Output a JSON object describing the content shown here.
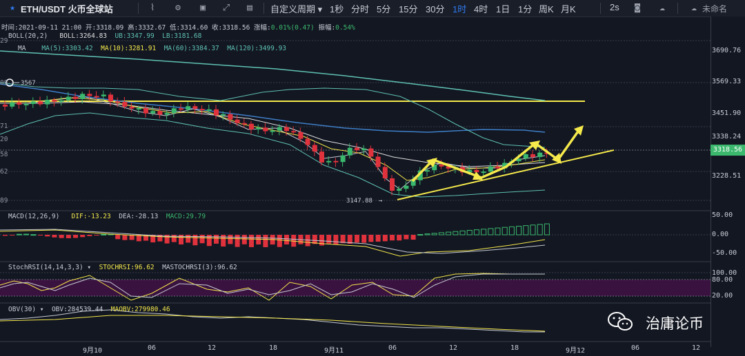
{
  "toolbar": {
    "symbol": "ETH/USDT 火币全球站",
    "period_label": "自定义周期",
    "intervals": [
      "1秒",
      "分时",
      "5分",
      "15分",
      "30分",
      "1时",
      "4时",
      "1日",
      "1分",
      "周K",
      "月K"
    ],
    "active_interval": "1时",
    "refresh": "2s",
    "user": "未命名"
  },
  "ohlc": {
    "time_label": "时间:",
    "time": "2021-09-11 21:00",
    "open_label": "开:",
    "open": "3318.09",
    "high_label": "高:",
    "high": "3332.67",
    "low_label": "低:",
    "low": "3314.60",
    "close_label": "收:",
    "close": "3318.56",
    "change_label": "涨幅:",
    "change": "0.01%(0.47)",
    "amp_label": "振幅:",
    "amp": "0.54%"
  },
  "boll": {
    "name": "BOLL(20,2)",
    "boll": "BOLL:3264.83",
    "ub": "UB:3347.99",
    "lb": "LB:3181.68"
  },
  "ma": {
    "name": "MA",
    "ma5": "MA(5):3303.42",
    "ma10": "MA(10):3281.91",
    "ma60": "MA(60):3384.37",
    "ma120": "MA(120):3499.93"
  },
  "price_axis": [
    "3690.76",
    "3569.33",
    "3451.90",
    "3338.24",
    "3228.51"
  ],
  "current_price": "3318.56",
  "left_partial": [
    "29",
    "09",
    "71",
    "20",
    "58",
    "62",
    "89"
  ],
  "annotations": {
    "high_mark": "3567",
    "low_mark": "3147.88"
  },
  "macd": {
    "name": "MACD(12,26,9)",
    "dif": "DIF:-13.23",
    "dea": "DEA:-28.13",
    "macd": "MACD:29.79",
    "axis": [
      "50.00",
      "0.00",
      "-50.00"
    ]
  },
  "stochrsi": {
    "name": "StochRSI(14,14,3,3)",
    "k": "STOCHRSI:96.62",
    "d": "MASTOCHRSI(3):96.62",
    "axis": [
      "100.00",
      "80.00",
      "20.00"
    ]
  },
  "obv": {
    "name": "OBV(30)",
    "obv": "OBV:284539.44",
    "maobv": "MAOBV:279980.46"
  },
  "time_axis": [
    "9月10",
    "06",
    "12",
    "18",
    "9月11",
    "06",
    "12",
    "18",
    "9月12",
    "06",
    "12"
  ],
  "watermark": "治庸论币",
  "colors": {
    "up": "#3bb86d",
    "down": "#e0323c",
    "boll_mid": "#e0e0e0",
    "ma_yellow": "#f5e94b",
    "ma60": "#3e7fc8",
    "ma120": "#5fc2b4",
    "stoch_band": "#3a1240"
  }
}
